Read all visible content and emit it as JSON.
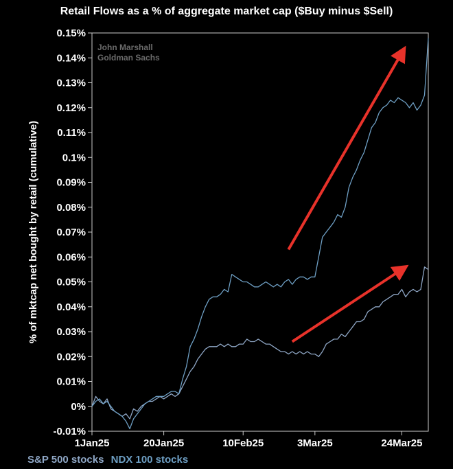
{
  "chart_data": {
    "type": "line",
    "title": "Retail Flows as a % of aggregate market cap ($Buy minus $Sell)",
    "ylabel": "% of mktcap net bought by retail (cumulative)",
    "xlabel": "",
    "watermark": [
      "John Marshall",
      "Goldman Sachs"
    ],
    "x_ticks": [
      "1Jan25",
      "20Jan25",
      "10Feb25",
      "3Mar25",
      "24Mar25"
    ],
    "x_tick_days": [
      0,
      19,
      40,
      59,
      82
    ],
    "xlim_days": [
      0,
      89
    ],
    "y_ticks": [
      "-0.01%",
      "0%",
      "0.01%",
      "0.02%",
      "0.03%",
      "0.04%",
      "0.05%",
      "0.06%",
      "0.07%",
      "0.08%",
      "0.09%",
      "0.1%",
      "0.11%",
      "0.12%",
      "0.13%",
      "0.14%",
      "0.15%"
    ],
    "ylim": [
      -0.01,
      0.15
    ],
    "grid": false,
    "legend_position": "bottom-left",
    "series": [
      {
        "name": "S&P 500 stocks",
        "color": "#8fa7c6",
        "x_days": [
          0,
          1,
          2,
          3,
          4,
          5,
          6,
          7,
          8,
          9,
          10,
          11,
          12,
          13,
          14,
          15,
          16,
          17,
          18,
          19,
          20,
          21,
          22,
          23,
          24,
          25,
          26,
          27,
          28,
          29,
          30,
          31,
          32,
          33,
          34,
          35,
          36,
          37,
          38,
          39,
          40,
          41,
          42,
          43,
          44,
          45,
          46,
          47,
          48,
          49,
          50,
          51,
          52,
          53,
          54,
          55,
          56,
          57,
          58,
          59,
          60,
          61,
          62,
          63,
          64,
          65,
          66,
          67,
          68,
          69,
          70,
          71,
          72,
          73,
          74,
          75,
          76,
          77,
          78,
          79,
          80,
          81,
          82,
          83,
          84,
          85,
          86,
          87,
          88,
          89
        ],
        "values": [
          0,
          0.004,
          0.002,
          0.001,
          0.003,
          -0.001,
          -0.002,
          -0.003,
          -0.004,
          -0.003,
          -0.005,
          -0.001,
          -0.002,
          0.0,
          0.001,
          0.002,
          0.002,
          0.003,
          0.004,
          0.003,
          0.004,
          0.005,
          0.004,
          0.005,
          0.008,
          0.011,
          0.014,
          0.016,
          0.019,
          0.021,
          0.023,
          0.024,
          0.024,
          0.024,
          0.025,
          0.024,
          0.025,
          0.024,
          0.024,
          0.025,
          0.025,
          0.027,
          0.026,
          0.026,
          0.027,
          0.026,
          0.025,
          0.025,
          0.024,
          0.023,
          0.022,
          0.022,
          0.021,
          0.022,
          0.021,
          0.022,
          0.021,
          0.022,
          0.021,
          0.021,
          0.02,
          0.022,
          0.025,
          0.026,
          0.027,
          0.027,
          0.029,
          0.028,
          0.03,
          0.032,
          0.034,
          0.034,
          0.035,
          0.038,
          0.039,
          0.04,
          0.04,
          0.042,
          0.043,
          0.044,
          0.045,
          0.045,
          0.047,
          0.044,
          0.046,
          0.047,
          0.046,
          0.047,
          0.056,
          0.055
        ]
      },
      {
        "name": "NDX 100 stocks",
        "color": "#6e9fc4",
        "x_days": [
          0,
          1,
          2,
          3,
          4,
          5,
          6,
          7,
          8,
          9,
          10,
          11,
          12,
          13,
          14,
          15,
          16,
          17,
          18,
          19,
          20,
          21,
          22,
          23,
          24,
          25,
          26,
          27,
          28,
          29,
          30,
          31,
          32,
          33,
          34,
          35,
          36,
          37,
          38,
          39,
          40,
          41,
          42,
          43,
          44,
          45,
          46,
          47,
          48,
          49,
          50,
          51,
          52,
          53,
          54,
          55,
          56,
          57,
          58,
          59,
          60,
          61,
          62,
          63,
          64,
          65,
          66,
          67,
          68,
          69,
          70,
          71,
          72,
          73,
          74,
          75,
          76,
          77,
          78,
          79,
          80,
          81,
          82,
          83,
          84,
          85,
          86,
          87,
          88,
          89
        ],
        "values": [
          0,
          0.002,
          0.003,
          0.001,
          0.002,
          0.0,
          -0.002,
          -0.003,
          -0.004,
          -0.006,
          -0.009,
          -0.005,
          -0.003,
          -0.001,
          0.001,
          0.002,
          0.003,
          0.004,
          0.004,
          0.004,
          0.005,
          0.006,
          0.006,
          0.005,
          0.011,
          0.016,
          0.024,
          0.027,
          0.031,
          0.036,
          0.04,
          0.043,
          0.044,
          0.044,
          0.045,
          0.047,
          0.046,
          0.053,
          0.052,
          0.051,
          0.05,
          0.05,
          0.049,
          0.048,
          0.048,
          0.049,
          0.05,
          0.049,
          0.048,
          0.049,
          0.048,
          0.05,
          0.051,
          0.049,
          0.051,
          0.052,
          0.052,
          0.051,
          0.052,
          0.052,
          0.06,
          0.068,
          0.07,
          0.072,
          0.074,
          0.077,
          0.076,
          0.08,
          0.088,
          0.092,
          0.095,
          0.099,
          0.102,
          0.107,
          0.112,
          0.114,
          0.118,
          0.12,
          0.121,
          0.123,
          0.122,
          0.124,
          0.123,
          0.122,
          0.12,
          0.122,
          0.119,
          0.121,
          0.125,
          0.148
        ]
      }
    ],
    "annotations": [
      {
        "type": "arrow",
        "color": "#e8322a",
        "from": [
          52,
          0.063
        ],
        "to": [
          82,
          0.142
        ]
      },
      {
        "type": "arrow",
        "color": "#e8322a",
        "from": [
          53,
          0.026
        ],
        "to": [
          82,
          0.055
        ]
      }
    ]
  },
  "legend": {
    "items": [
      {
        "label": "S&P 500 stocks",
        "color": "#8fa7c6"
      },
      {
        "label": "NDX 100 stocks",
        "color": "#6e9fc4"
      }
    ]
  }
}
